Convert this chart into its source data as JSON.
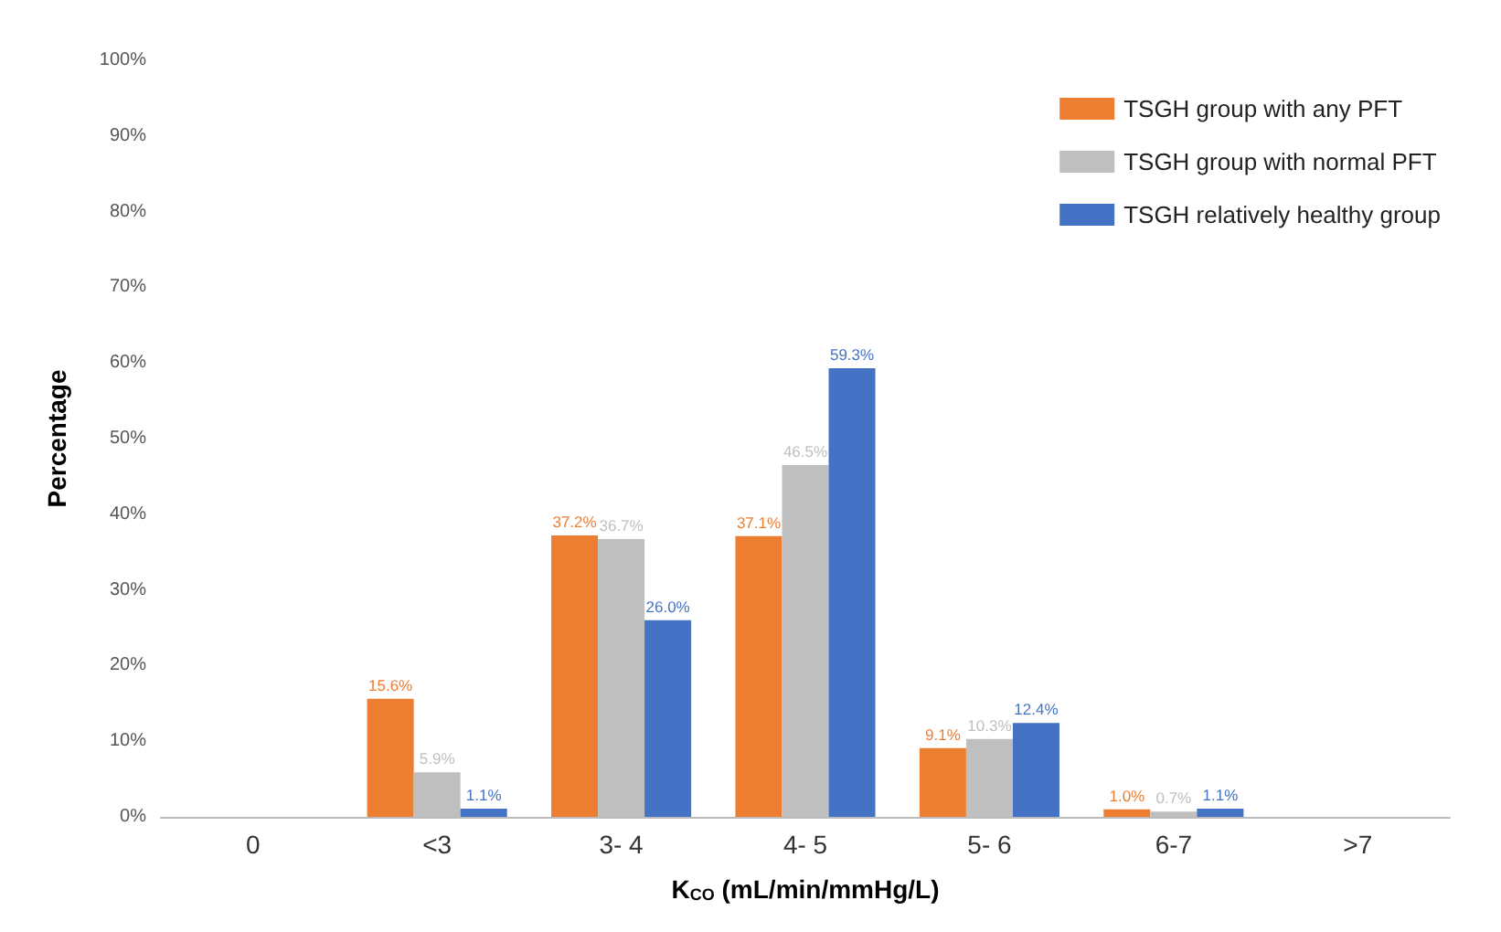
{
  "chart_data": {
    "type": "bar",
    "ylabel": "Percentage",
    "xlabel": "K$_{CO}$ (mL/min/mmHg/L)",
    "categories": [
      "0",
      "<3",
      "3- 4",
      "4- 5",
      "5- 6",
      "6-7",
      ">7"
    ],
    "series": [
      {
        "name": "TSGH group with any PFT",
        "color": "#ed7d31",
        "values": [
          null,
          15.6,
          37.2,
          37.1,
          9.1,
          1.0,
          null
        ],
        "value_labels": [
          null,
          "15.6%",
          "37.2%",
          "37.1%",
          "9.1%",
          "1.0%",
          null
        ]
      },
      {
        "name": "TSGH group with normal PFT",
        "color": "#bfbfbf",
        "values": [
          null,
          5.9,
          36.7,
          46.5,
          10.3,
          0.7,
          null
        ],
        "value_labels": [
          null,
          "5.9%",
          "36.7%",
          "46.5%",
          "10.3%",
          "0.7%",
          null
        ]
      },
      {
        "name": "TSGH relatively healthy group",
        "color": "#4472c4",
        "values": [
          null,
          1.1,
          26.0,
          59.3,
          12.4,
          1.1,
          null
        ],
        "value_labels": [
          null,
          "1.1%",
          "26.0%",
          "59.3%",
          "12.4%",
          "1.1%",
          null
        ]
      }
    ],
    "ylim": [
      0,
      100
    ],
    "yticks": [
      {
        "value": 0,
        "label": "0%"
      },
      {
        "value": 10,
        "label": "10%"
      },
      {
        "value": 20,
        "label": "20%"
      },
      {
        "value": 30,
        "label": "30%"
      },
      {
        "value": 40,
        "label": "40%"
      },
      {
        "value": 50,
        "label": "50%"
      },
      {
        "value": 60,
        "label": "60%"
      },
      {
        "value": 70,
        "label": "70%"
      },
      {
        "value": 80,
        "label": "80%"
      },
      {
        "value": 90,
        "label": "90%"
      },
      {
        "value": 100,
        "label": "100%"
      }
    ],
    "grid": false,
    "legend": "top right"
  }
}
